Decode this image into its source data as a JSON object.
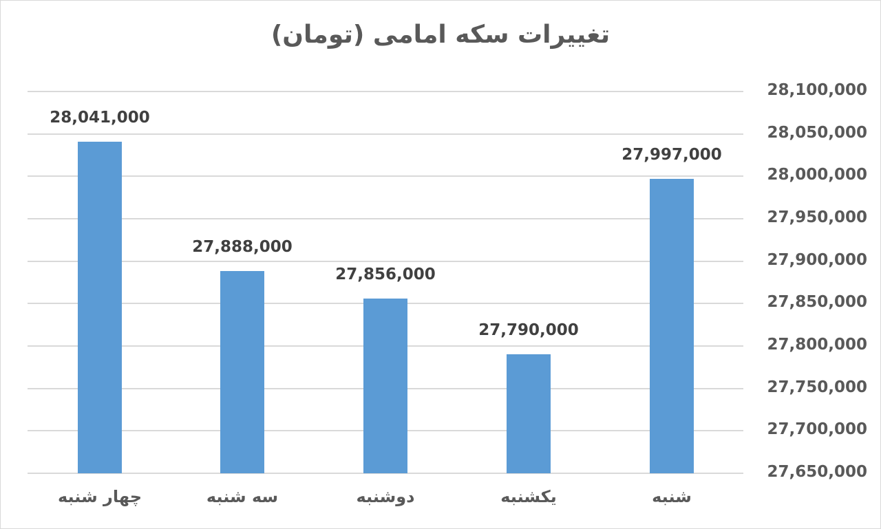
{
  "chart_data": {
    "type": "bar",
    "title": "تغییرات سکه امامی (تومان)",
    "categories": [
      "چهار شنبه",
      "سه شنبه",
      "دوشنبه",
      "یکشنبه",
      "شنبه"
    ],
    "values": [
      28041000,
      27888000,
      27856000,
      27790000,
      27997000
    ],
    "value_labels": [
      "28,041,000",
      "27,888,000",
      "27,856,000",
      "27,790,000",
      "27,997,000"
    ],
    "xlabel": "",
    "ylabel": "",
    "ylim": [
      27650000,
      28100000
    ],
    "y_ticks": [
      "28,100,000",
      "28,050,000",
      "28,000,000",
      "27,950,000",
      "27,900,000",
      "27,850,000",
      "27,800,000",
      "27,750,000",
      "27,700,000",
      "27,650,000"
    ],
    "y_axis_position": "right",
    "grid": true,
    "legend": "none",
    "bar_color": "#5b9bd5"
  }
}
